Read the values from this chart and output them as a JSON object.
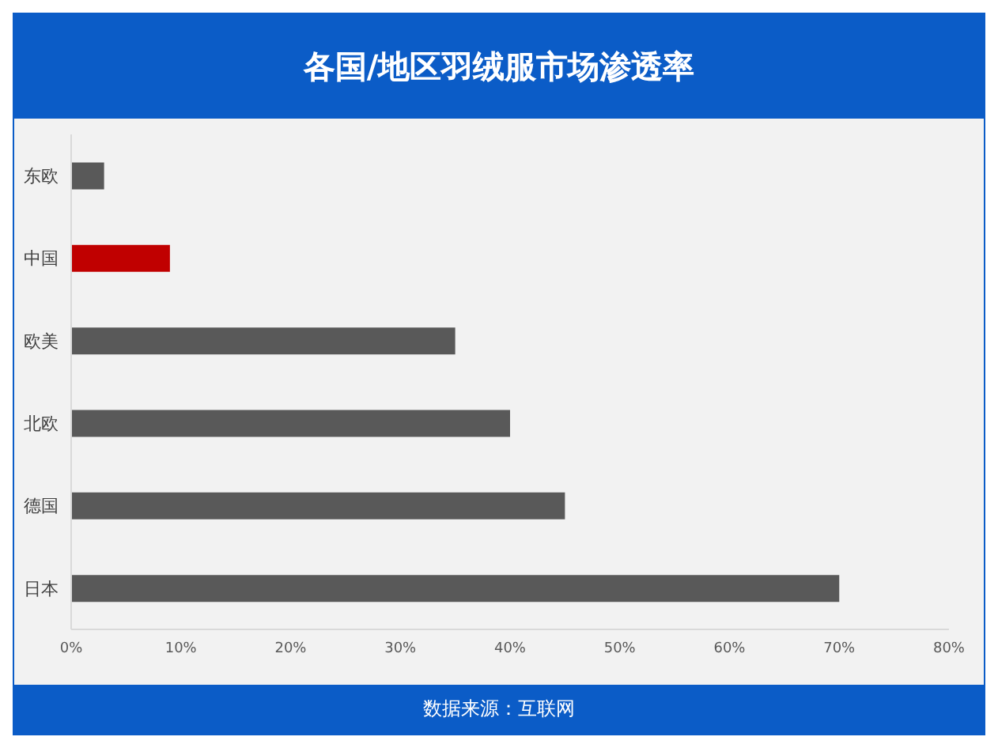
{
  "chart_data": {
    "type": "bar",
    "orientation": "horizontal",
    "title": "各国/地区羽绒服市场渗透率",
    "categories": [
      "东欧",
      "中国",
      "欧美",
      "北欧",
      "德国",
      "日本"
    ],
    "values": [
      3,
      9,
      35,
      40,
      45,
      70
    ],
    "colors": [
      "#595959",
      "#c00000",
      "#595959",
      "#595959",
      "#595959",
      "#595959"
    ],
    "xlim": [
      0,
      80
    ],
    "xticks": [
      {
        "value": 0,
        "label": "0%"
      },
      {
        "value": 10,
        "label": "10%"
      },
      {
        "value": 20,
        "label": "20%"
      },
      {
        "value": 30,
        "label": "30%"
      },
      {
        "value": 40,
        "label": "40%"
      },
      {
        "value": 50,
        "label": "50%"
      },
      {
        "value": 60,
        "label": "60%"
      },
      {
        "value": 70,
        "label": "70%"
      },
      {
        "value": 80,
        "label": "80%"
      }
    ],
    "annotations": [
      "数据来源：互联网"
    ]
  }
}
